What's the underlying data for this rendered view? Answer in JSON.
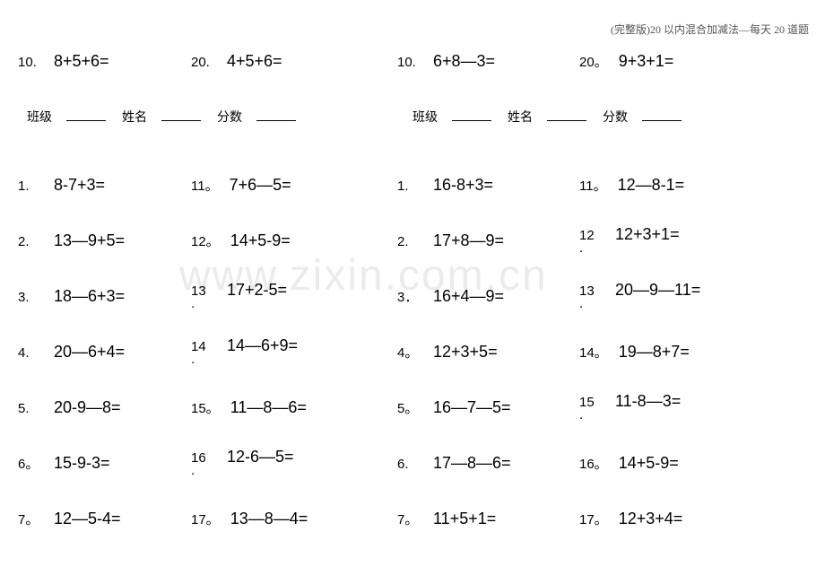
{
  "header": "(完整版)20 以内混合加减法—每天 20 道题",
  "watermark": "www.zixin.com.cn",
  "topRow": [
    {
      "num": "10.",
      "prob": "8+5+6="
    },
    {
      "num": "20.",
      "prob": "4+5+6="
    },
    {
      "num": "10.",
      "prob": "6+8—3="
    },
    {
      "num": "20。",
      "prob": "9+3+1="
    }
  ],
  "infoLeft": {
    "class": "班级",
    "name": "姓名",
    "score": "分数"
  },
  "infoRight": {
    "class": "班级",
    "name": "姓名",
    "score": "分数"
  },
  "rows": [
    [
      {
        "num": "1.",
        "prob": "8-7+3="
      },
      {
        "num": "11。",
        "prob": "7+6—5="
      },
      {
        "num": "1.",
        "prob": "16-8+3="
      },
      {
        "num": "11。",
        "prob": "12—8-1="
      }
    ],
    [
      {
        "num": "2.",
        "prob": "13—9+5="
      },
      {
        "num": "12。",
        "prob": "14+5-9="
      },
      {
        "num": "2.",
        "prob": "17+8—9="
      },
      {
        "num": "12",
        "prob": "12+3+1=",
        "multi": true
      }
    ],
    [
      {
        "num": "3.",
        "prob": "18—6+3="
      },
      {
        "num": "13",
        "prob": "17+2-5=",
        "multi": true
      },
      {
        "num": "3．",
        "prob": "16+4—9="
      },
      {
        "num": "13",
        "prob": "20—9—11=",
        "multi": true
      }
    ],
    [
      {
        "num": "4.",
        "prob": "20—6+4="
      },
      {
        "num": "14",
        "prob": "14—6+9=",
        "multi": true
      },
      {
        "num": "4。",
        "prob": "12+3+5="
      },
      {
        "num": "14。",
        "prob": "19—8+7="
      }
    ],
    [
      {
        "num": "5.",
        "prob": "20-9—8="
      },
      {
        "num": "15。",
        "prob": "11—8—6="
      },
      {
        "num": "5。",
        "prob": "16—7—5="
      },
      {
        "num": "15",
        "prob": "11-8—3=",
        "multi": true
      }
    ],
    [
      {
        "num": "6。",
        "prob": "15-9-3="
      },
      {
        "num": "16",
        "prob": "12-6—5=",
        "multi": true
      },
      {
        "num": "6.",
        "prob": "17—8—6="
      },
      {
        "num": "16。",
        "prob": "14+5-9="
      }
    ],
    [
      {
        "num": "7。",
        "prob": "12—5-4="
      },
      {
        "num": "17。",
        "prob": "13—8—4="
      },
      {
        "num": "7。",
        "prob": "11+5+1="
      },
      {
        "num": "17。",
        "prob": "12+3+4="
      }
    ]
  ]
}
